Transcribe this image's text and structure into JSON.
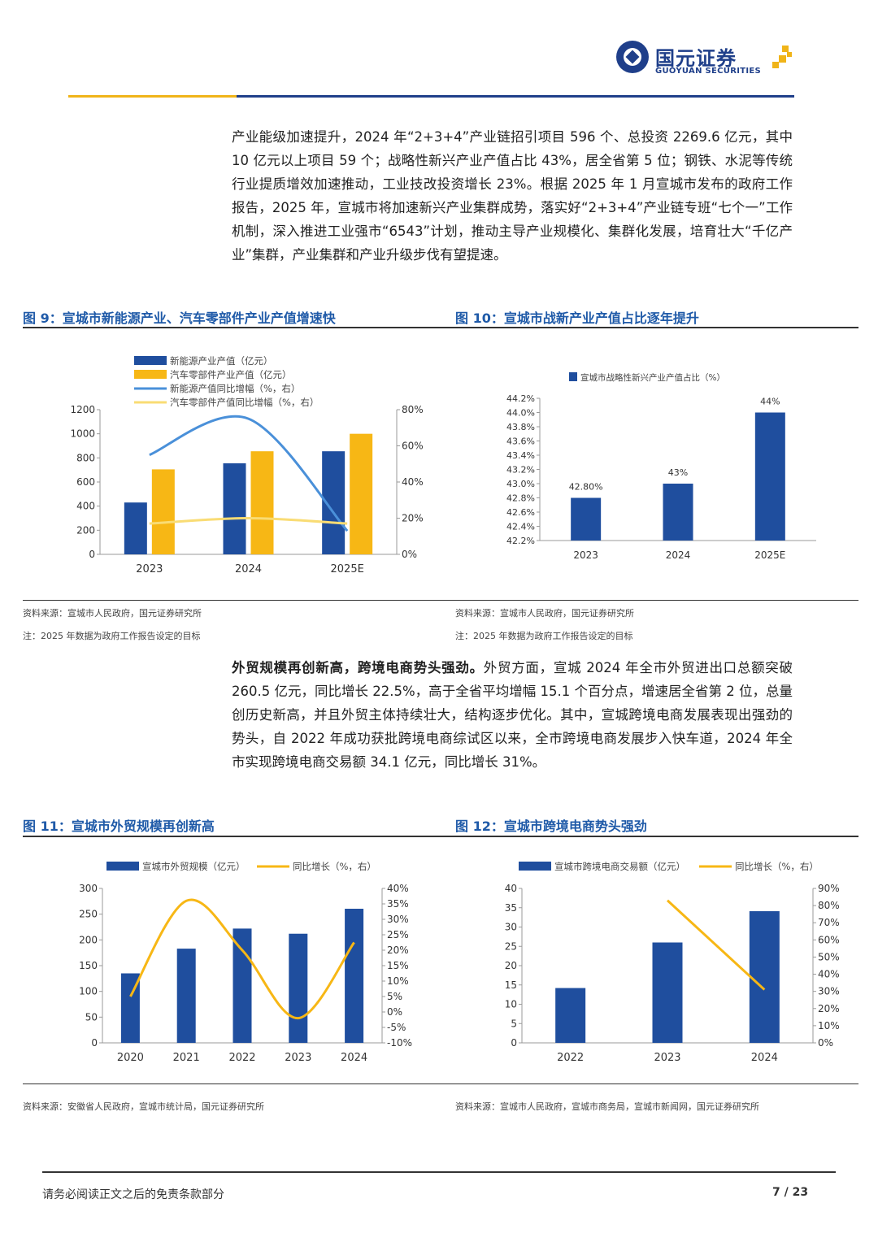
{
  "header": {
    "logo_cn": "国元证券",
    "logo_en": "GUOYUAN SECURITIES"
  },
  "paragraph1": "产业能级加速提升，2024 年“2+3+4”产业链招引项目 596 个、总投资 2269.6 亿元，其中 10 亿元以上项目 59 个；战略性新兴产业产值占比 43%，居全省第 5 位；钢铁、水泥等传统行业提质增效加速推动，工业技改投资增长 23%。根据 2025 年 1 月宣城市发布的政府工作报告，2025 年，宣城市将加速新兴产业集群成势，落实好“2+3+4”产业链专班“七个一”工作机制，深入推进工业强市“6543”计划，推动主导产业规模化、集群化发展，培育壮大“千亿产业”集群，产业集群和产业升级步伐有望提速。",
  "paragraph2": {
    "bold": "外贸规模再创新高，跨境电商势头强劲。",
    "text": "外贸方面，宣城 2024 年全市外贸进出口总额突破 260.5 亿元，同比增长 22.5%，高于全省平均增幅 15.1 个百分点，增速居全省第 2 位，总量创历史新高，并且外贸主体持续壮大，结构逐步优化。其中，宣城跨境电商发展表现出强劲的势头，自 2022 年成功获批跨境电商综试区以来，全市跨境电商发展步入快车道，2024 年全市实现跨境电商交易额 34.1 亿元，同比增长 31%。"
  },
  "fig9": {
    "title": "图 9：宣城市新能源产业、汽车零部件产业产值增速快",
    "source": "资料来源：宣城市人民政府，国元证券研究所",
    "note": "注：2025 年数据为政府工作报告设定的目标"
  },
  "fig10": {
    "title": "图 10：宣城市战新产业产值占比逐年提升",
    "source": "资料来源：宣城市人民政府，国元证券研究所",
    "note": "注：2025 年数据为政府工作报告设定的目标"
  },
  "fig11": {
    "title": "图 11：宣城市外贸规模再创新高",
    "source": "资料来源：安徽省人民政府，宣城市统计局，国元证券研究所"
  },
  "fig12": {
    "title": "图 12：宣城市跨境电商势头强劲",
    "source": "资料来源：宣城市人民政府，宣城市商务局，宣城市新闻网，国元证券研究所"
  },
  "footer": {
    "disclaimer": "请务必阅读正文之后的免责条款部分",
    "page": "7 / 23"
  },
  "colors": {
    "blue": "#1f4e9e",
    "gold": "#f7b715",
    "line_blue": "#4a90d9",
    "line_gold": "#f9dc74"
  },
  "chart_data": [
    {
      "id": "fig9",
      "type": "bar",
      "categories": [
        "2023",
        "2024",
        "2025E"
      ],
      "series": [
        {
          "name": "新能源产业产值（亿元）",
          "kind": "bar",
          "axis": "left",
          "values": [
            430,
            755,
            855
          ]
        },
        {
          "name": "汽车零部件产业产值（亿元）",
          "kind": "bar",
          "axis": "left",
          "values": [
            705,
            855,
            1000
          ]
        },
        {
          "name": "新能源产值同比增幅（%，右）",
          "kind": "line",
          "axis": "right",
          "values": [
            55,
            75,
            13
          ]
        },
        {
          "name": "汽车零部件产值同比增幅（%，右）",
          "kind": "line",
          "axis": "right",
          "values": [
            17,
            20,
            17
          ]
        }
      ],
      "yticks_left": [
        "0",
        "200",
        "400",
        "600",
        "800",
        "1000",
        "1200"
      ],
      "ylim_left": [
        0,
        1200
      ],
      "yticks_right": [
        "0%",
        "20%",
        "40%",
        "60%",
        "80%"
      ],
      "ylim_right": [
        0,
        80
      ],
      "legend": "top"
    },
    {
      "id": "fig10",
      "type": "bar",
      "categories": [
        "2023",
        "2024",
        "2025E"
      ],
      "series": [
        {
          "name": "宣城市战略性新兴产业产值占比（%）",
          "kind": "bar",
          "axis": "left",
          "values": [
            42.8,
            43.0,
            44.0
          ],
          "labels": [
            "42.80%",
            "43%",
            "44%"
          ]
        }
      ],
      "yticks_left": [
        "42.2%",
        "42.4%",
        "42.6%",
        "42.8%",
        "43.0%",
        "43.2%",
        "43.4%",
        "43.6%",
        "43.8%",
        "44.0%",
        "44.2%"
      ],
      "ylim_left": [
        42.2,
        44.2
      ],
      "legend": "top"
    },
    {
      "id": "fig11",
      "type": "bar",
      "categories": [
        "2020",
        "2021",
        "2022",
        "2023",
        "2024"
      ],
      "series": [
        {
          "name": "宣城市外贸规模（亿元）",
          "kind": "bar",
          "axis": "left",
          "values": [
            135,
            183,
            222,
            212,
            260.5
          ]
        },
        {
          "name": "同比增长（%，右）",
          "kind": "line",
          "axis": "right",
          "values": [
            5,
            36,
            20,
            -2,
            22.5
          ]
        }
      ],
      "yticks_left": [
        "0",
        "50",
        "100",
        "150",
        "200",
        "250",
        "300"
      ],
      "ylim_left": [
        0,
        300
      ],
      "yticks_right": [
        "-10%",
        "-5%",
        "0%",
        "5%",
        "10%",
        "15%",
        "20%",
        "25%",
        "30%",
        "35%",
        "40%"
      ],
      "ylim_right": [
        -10,
        40
      ],
      "legend": "top"
    },
    {
      "id": "fig12",
      "type": "bar",
      "categories": [
        "2022",
        "2023",
        "2024"
      ],
      "series": [
        {
          "name": "宣城市跨境电商交易额（亿元）",
          "kind": "bar",
          "axis": "left",
          "values": [
            14.2,
            26,
            34.1
          ]
        },
        {
          "name": "同比增长（%，右）",
          "kind": "line",
          "axis": "right",
          "values": [
            null,
            83,
            31
          ]
        }
      ],
      "yticks_left": [
        "0",
        "5",
        "10",
        "15",
        "20",
        "25",
        "30",
        "35",
        "40"
      ],
      "ylim_left": [
        0,
        40
      ],
      "yticks_right": [
        "0%",
        "10%",
        "20%",
        "30%",
        "40%",
        "50%",
        "60%",
        "70%",
        "80%",
        "90%"
      ],
      "ylim_right": [
        0,
        90
      ],
      "legend": "top"
    }
  ]
}
